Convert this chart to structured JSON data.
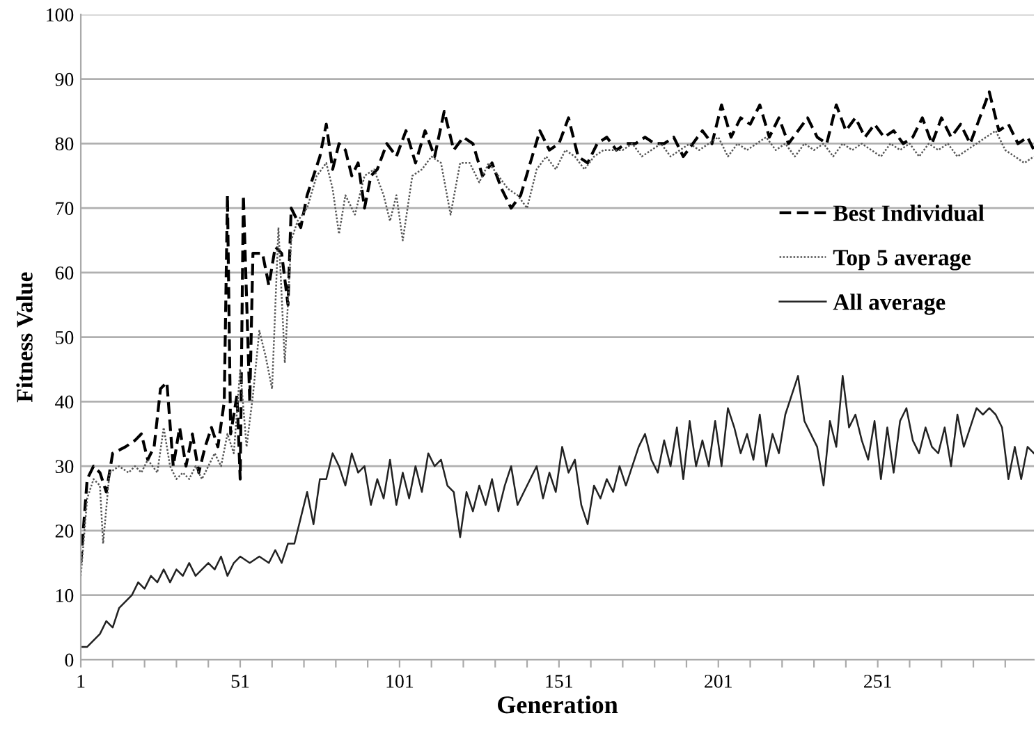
{
  "chart_data": {
    "type": "line",
    "xlabel": "Generation",
    "ylabel": "Fitness Value",
    "xlim": [
      1,
      300
    ],
    "ylim": [
      0,
      100
    ],
    "xticks": [
      1,
      {
        "value": 11,
        "label": null
      },
      {
        "value": 21,
        "label": null
      },
      {
        "value": 31,
        "label": null
      },
      {
        "value": 41,
        "label": null
      },
      51,
      {
        "value": 61,
        "label": null
      },
      {
        "value": 71,
        "label": null
      },
      {
        "value": 81,
        "label": null
      },
      {
        "value": 91,
        "label": null
      },
      101,
      {
        "value": 111,
        "label": null
      },
      {
        "value": 121,
        "label": null
      },
      {
        "value": 131,
        "label": null
      },
      {
        "value": 141,
        "label": null
      },
      151,
      {
        "value": 161,
        "label": null
      },
      {
        "value": 171,
        "label": null
      },
      {
        "value": 181,
        "label": null
      },
      {
        "value": 191,
        "label": null
      },
      201,
      {
        "value": 211,
        "label": null
      },
      {
        "value": 221,
        "label": null
      },
      {
        "value": 231,
        "label": null
      },
      {
        "value": 241,
        "label": null
      },
      251,
      {
        "value": 261,
        "label": null
      },
      {
        "value": 271,
        "label": null
      },
      {
        "value": 281,
        "label": null
      },
      {
        "value": 291,
        "label": null
      }
    ],
    "yticks": [
      0,
      10,
      20,
      30,
      40,
      50,
      60,
      70,
      80,
      90,
      100
    ],
    "grid": "y",
    "legend": "right",
    "marker": "none",
    "series": [
      {
        "name": "Best Individual",
        "color": "#000000",
        "line_style": "dashed",
        "x": [
          1,
          3,
          5,
          7,
          9,
          11,
          15,
          18,
          20,
          22,
          24,
          26,
          28,
          30,
          32,
          34,
          36,
          38,
          40,
          42,
          44,
          46,
          47,
          48,
          50,
          51,
          52,
          54,
          55,
          58,
          60,
          62,
          64,
          66,
          67,
          70,
          72,
          74,
          76,
          78,
          80,
          82,
          84,
          86,
          88,
          90,
          92,
          94,
          97,
          100,
          103,
          106,
          109,
          112,
          115,
          118,
          121,
          124,
          127,
          130,
          133,
          136,
          139,
          142,
          145,
          148,
          151,
          154,
          157,
          160,
          163,
          166,
          169,
          172,
          175,
          178,
          181,
          184,
          187,
          190,
          193,
          196,
          199,
          202,
          205,
          208,
          211,
          214,
          217,
          220,
          223,
          226,
          229,
          232,
          235,
          238,
          241,
          244,
          247,
          250,
          253,
          256,
          259,
          262,
          265,
          268,
          271,
          274,
          277,
          280,
          283,
          286,
          289,
          292,
          295,
          298,
          300
        ],
        "values": [
          15,
          28,
          30,
          29,
          26,
          32,
          33,
          34,
          35,
          31,
          33,
          42,
          43,
          30,
          36,
          30,
          35,
          29,
          33,
          36,
          33,
          40,
          72,
          35,
          41,
          28,
          72,
          40,
          63,
          63,
          58,
          64,
          63,
          55,
          70,
          67,
          72,
          75,
          78,
          83,
          76,
          80,
          79,
          75,
          77,
          70,
          75,
          76,
          80,
          78,
          82,
          77,
          82,
          78,
          85,
          79,
          81,
          80,
          75,
          77,
          73,
          70,
          72,
          77,
          82,
          79,
          80,
          84,
          78,
          77,
          80,
          81,
          79,
          80,
          80,
          81,
          80,
          80,
          81,
          78,
          80,
          82,
          80,
          86,
          81,
          84,
          83,
          86,
          81,
          84,
          80,
          82,
          84,
          81,
          80,
          86,
          82,
          84,
          81,
          83,
          81,
          82,
          80,
          81,
          84,
          80,
          84,
          81,
          83,
          80,
          84,
          88,
          82,
          83,
          80,
          81,
          79
        ]
      },
      {
        "name": "Top 5 average",
        "color": "#555555",
        "line_style": "dotted",
        "x": [
          1,
          3,
          5,
          7,
          8,
          10,
          13,
          16,
          18,
          20,
          22,
          25,
          27,
          29,
          31,
          33,
          35,
          37,
          39,
          41,
          43,
          45,
          47,
          49,
          51,
          53,
          55,
          57,
          59,
          61,
          63,
          65,
          67,
          69,
          72,
          75,
          78,
          80,
          82,
          84,
          87,
          90,
          93,
          96,
          98,
          100,
          102,
          105,
          108,
          111,
          114,
          117,
          120,
          123,
          126,
          129,
          132,
          135,
          138,
          141,
          144,
          147,
          150,
          153,
          156,
          159,
          162,
          165,
          168,
          171,
          174,
          177,
          180,
          183,
          186,
          189,
          192,
          195,
          198,
          201,
          204,
          207,
          210,
          213,
          216,
          219,
          222,
          225,
          228,
          231,
          234,
          237,
          240,
          243,
          246,
          249,
          252,
          255,
          258,
          261,
          264,
          267,
          270,
          273,
          276,
          279,
          282,
          285,
          288,
          291,
          294,
          297,
          300
        ],
        "values": [
          13,
          25,
          28,
          27,
          18,
          29,
          30,
          29,
          30,
          29,
          31,
          29,
          36,
          30,
          28,
          29,
          28,
          30,
          28,
          30,
          32,
          30,
          35,
          32,
          45,
          33,
          41,
          51,
          47,
          42,
          67,
          46,
          65,
          68,
          70,
          75,
          77,
          73,
          66,
          72,
          69,
          75,
          76,
          72,
          68,
          72,
          65,
          75,
          76,
          78,
          77,
          69,
          77,
          77,
          74,
          77,
          75,
          73,
          72,
          70,
          76,
          78,
          76,
          79,
          78,
          76,
          78,
          79,
          79,
          79,
          80,
          78,
          79,
          80,
          78,
          79,
          80,
          79,
          80,
          81,
          78,
          80,
          79,
          80,
          81,
          79,
          80,
          78,
          80,
          79,
          80,
          78,
          80,
          79,
          80,
          79,
          78,
          80,
          79,
          80,
          78,
          80,
          79,
          80,
          78,
          79,
          80,
          81,
          82,
          79,
          78,
          77,
          78
        ]
      },
      {
        "name": "All average",
        "color": "#222222",
        "line_style": "solid",
        "x": [
          1,
          3,
          5,
          7,
          9,
          11,
          13,
          15,
          17,
          19,
          21,
          23,
          25,
          27,
          29,
          31,
          33,
          35,
          37,
          39,
          41,
          43,
          45,
          47,
          49,
          51,
          54,
          57,
          60,
          62,
          64,
          66,
          68,
          70,
          72,
          74,
          76,
          78,
          80,
          82,
          84,
          86,
          88,
          90,
          92,
          94,
          96,
          98,
          100,
          102,
          104,
          106,
          108,
          110,
          112,
          114,
          116,
          118,
          120,
          122,
          124,
          126,
          128,
          130,
          132,
          134,
          136,
          138,
          140,
          142,
          144,
          146,
          148,
          150,
          152,
          154,
          156,
          158,
          160,
          162,
          164,
          166,
          168,
          170,
          172,
          174,
          176,
          178,
          180,
          182,
          184,
          186,
          188,
          190,
          192,
          194,
          196,
          198,
          200,
          202,
          204,
          206,
          208,
          210,
          212,
          214,
          216,
          218,
          220,
          222,
          224,
          226,
          228,
          230,
          232,
          234,
          236,
          238,
          240,
          242,
          244,
          246,
          248,
          250,
          252,
          254,
          256,
          258,
          260,
          262,
          264,
          266,
          268,
          270,
          272,
          274,
          276,
          278,
          280,
          282,
          284,
          286,
          288,
          290,
          292,
          294,
          296,
          298,
          300
        ],
        "values": [
          2,
          2,
          3,
          4,
          6,
          5,
          8,
          9,
          10,
          12,
          11,
          13,
          12,
          14,
          12,
          14,
          13,
          15,
          13,
          14,
          15,
          14,
          16,
          13,
          15,
          16,
          15,
          16,
          15,
          17,
          15,
          18,
          18,
          22,
          26,
          21,
          28,
          28,
          32,
          30,
          27,
          32,
          29,
          30,
          24,
          28,
          25,
          31,
          24,
          29,
          25,
          30,
          26,
          32,
          30,
          31,
          27,
          26,
          19,
          26,
          23,
          27,
          24,
          28,
          23,
          27,
          30,
          24,
          26,
          28,
          30,
          25,
          29,
          26,
          33,
          29,
          31,
          24,
          21,
          27,
          25,
          28,
          26,
          30,
          27,
          30,
          33,
          35,
          31,
          29,
          34,
          30,
          36,
          28,
          37,
          30,
          34,
          30,
          37,
          30,
          39,
          36,
          32,
          35,
          31,
          38,
          30,
          35,
          32,
          38,
          41,
          44,
          37,
          35,
          33,
          27,
          37,
          33,
          44,
          36,
          38,
          34,
          31,
          37,
          28,
          36,
          29,
          37,
          39,
          34,
          32,
          36,
          33,
          32,
          36,
          30,
          38,
          33,
          36,
          39,
          38,
          39,
          38,
          36,
          28,
          33,
          28,
          33,
          32
        ]
      }
    ]
  }
}
